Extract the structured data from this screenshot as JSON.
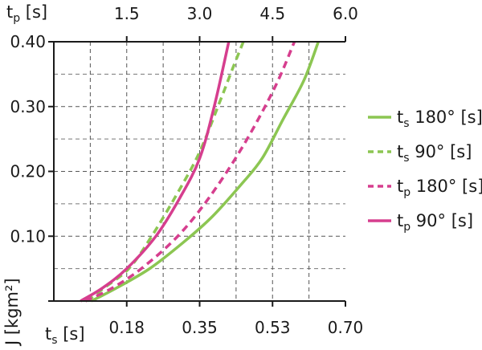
{
  "chart_data": {
    "type": "line",
    "title": "",
    "ylabel": "J [kgm²]",
    "xlabel_bottom": "ts [s]",
    "xlabel_top": "tp [s]",
    "y_axis": {
      "min": 0,
      "max": 0.4,
      "ticks": [
        0.1,
        0.2,
        0.3,
        0.4
      ],
      "tick_labels": [
        "0.10",
        "0.20",
        "0.30",
        "0.40"
      ],
      "minor_step": 0.05
    },
    "x_bottom_axis": {
      "min": 0,
      "max": 0.7,
      "ticks": [
        0.175,
        0.35,
        0.525,
        0.7
      ],
      "tick_labels": [
        "0.18",
        "0.35",
        "0.53",
        "0.70"
      ],
      "minor_step": 0.0875
    },
    "x_top_axis": {
      "min": 0,
      "max": 6.0,
      "ticks": [
        1.5,
        3.0,
        4.5,
        6.0
      ],
      "tick_labels": [
        "1.5",
        "3.0",
        "4.5",
        "6.0"
      ]
    },
    "grid": true,
    "legend_position": "right",
    "series": [
      {
        "name": "ts 180° [s]",
        "color": "#8cc652",
        "dash": "solid",
        "axis": "bottom",
        "points": [
          [
            0.09,
            0.0
          ],
          [
            0.15,
            0.02
          ],
          [
            0.23,
            0.05
          ],
          [
            0.31,
            0.09
          ],
          [
            0.38,
            0.13
          ],
          [
            0.45,
            0.18
          ],
          [
            0.5,
            0.22
          ],
          [
            0.55,
            0.28
          ],
          [
            0.6,
            0.34
          ],
          [
            0.635,
            0.4
          ]
        ]
      },
      {
        "name": "ts 90° [s]",
        "color": "#8cc652",
        "dash": "dashed",
        "axis": "bottom",
        "points": [
          [
            0.08,
            0.0
          ],
          [
            0.12,
            0.02
          ],
          [
            0.18,
            0.05
          ],
          [
            0.235,
            0.1
          ],
          [
            0.3,
            0.17
          ],
          [
            0.35,
            0.23
          ],
          [
            0.4,
            0.31
          ],
          [
            0.43,
            0.36
          ],
          [
            0.455,
            0.4
          ]
        ]
      },
      {
        "name": "tp 180° [s]",
        "color": "#d63e8e",
        "dash": "dashed",
        "axis": "top",
        "points": [
          [
            0.65,
            0.0
          ],
          [
            1.2,
            0.02
          ],
          [
            1.8,
            0.05
          ],
          [
            2.55,
            0.1
          ],
          [
            3.2,
            0.16
          ],
          [
            3.9,
            0.24
          ],
          [
            4.55,
            0.33
          ],
          [
            4.95,
            0.4
          ]
        ]
      },
      {
        "name": "tp 90° [s]",
        "color": "#d63e8e",
        "dash": "solid",
        "axis": "top",
        "points": [
          [
            0.55,
            0.0
          ],
          [
            1.0,
            0.02
          ],
          [
            1.5,
            0.05
          ],
          [
            2.1,
            0.1
          ],
          [
            2.6,
            0.16
          ],
          [
            3.0,
            0.22
          ],
          [
            3.3,
            0.3
          ],
          [
            3.6,
            0.4
          ]
        ]
      }
    ],
    "legend": [
      {
        "prefix": "t",
        "sub": "s",
        "suffix": " 180° [s]",
        "series": 0
      },
      {
        "prefix": "t",
        "sub": "s",
        "suffix": " 90° [s]",
        "series": 1
      },
      {
        "prefix": "t",
        "sub": "p",
        "suffix": " 180° [s]",
        "series": 2
      },
      {
        "prefix": "t",
        "sub": "p",
        "suffix": " 90° [s]",
        "series": 3
      }
    ],
    "axis_label_parts": {
      "top": {
        "prefix": "t",
        "sub": "p",
        "suffix": " [s]"
      },
      "bottom": {
        "prefix": "t",
        "sub": "s",
        "suffix": " [s]"
      },
      "left": "J [kgm²]"
    }
  }
}
